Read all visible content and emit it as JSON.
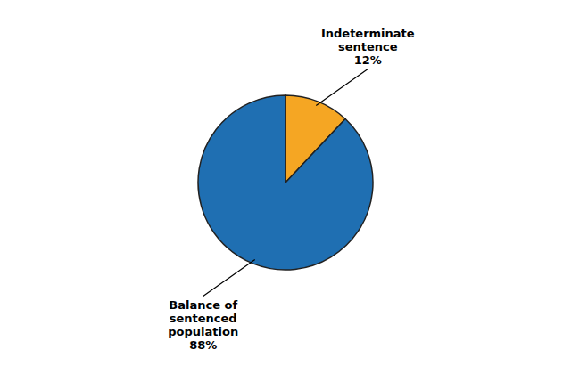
{
  "chart_data": {
    "type": "pie",
    "values": [
      12,
      88
    ],
    "colors": [
      "#F5A623",
      "#1F6FB2"
    ],
    "annotations": [
      "Indeterminate\nsentence\n12%",
      "Balance of\nsentenced\npopulation\n88%"
    ]
  }
}
